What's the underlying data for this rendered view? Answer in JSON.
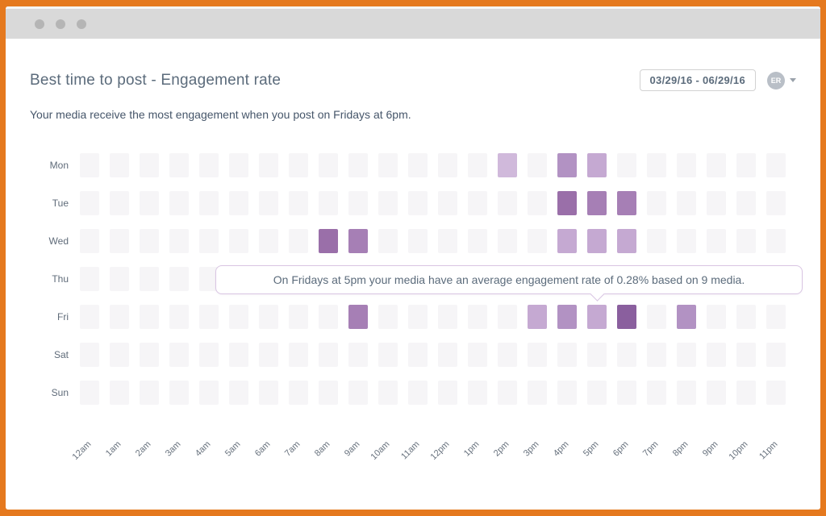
{
  "window": {
    "titlebar_dots": [
      "window-dot-1",
      "window-dot-2",
      "window-dot-3"
    ]
  },
  "header": {
    "title": "Best time to post - Engagement rate",
    "date_range": "03/29/16 - 06/29/16",
    "avatar_initials": "ER"
  },
  "subtitle": "Your media receive the most engagement when you post on Fridays at 6pm.",
  "tooltip": {
    "text": "On Fridays at 5pm your media have an average engagement rate of 0.28% based on 9 media.",
    "day": "Fri",
    "hour": "5pm",
    "engagement_rate": "0.28%",
    "media_count": 9
  },
  "chart_data": {
    "type": "heatmap",
    "title": "Best time to post - Engagement rate",
    "x_categories": [
      "12am",
      "1am",
      "2am",
      "3am",
      "4am",
      "5am",
      "6am",
      "7am",
      "8am",
      "9am",
      "10am",
      "11am",
      "12pm",
      "1pm",
      "2pm",
      "3pm",
      "4pm",
      "5pm",
      "6pm",
      "7pm",
      "8pm",
      "9pm",
      "10pm",
      "11pm"
    ],
    "y_categories": [
      "Mon",
      "Tue",
      "Wed",
      "Thu",
      "Fri",
      "Sat",
      "Sun"
    ],
    "palette": [
      "#f6f5f7",
      "#d0b9db",
      "#c5a9d2",
      "#b292c3",
      "#a67fb5",
      "#9a6fa9",
      "#8a5f9e"
    ],
    "legend": "palette index 0 = no engagement, 6 = highest engagement",
    "series": [
      {
        "name": "Mon",
        "values": [
          0,
          0,
          0,
          0,
          0,
          0,
          0,
          0,
          0,
          0,
          0,
          0,
          0,
          0,
          1,
          0,
          3,
          2,
          0,
          0,
          0,
          0,
          0,
          0
        ]
      },
      {
        "name": "Tue",
        "values": [
          0,
          0,
          0,
          0,
          0,
          0,
          0,
          0,
          0,
          0,
          0,
          0,
          0,
          0,
          0,
          0,
          5,
          4,
          4,
          0,
          0,
          0,
          0,
          0
        ]
      },
      {
        "name": "Wed",
        "values": [
          0,
          0,
          0,
          0,
          0,
          0,
          0,
          0,
          5,
          4,
          0,
          0,
          0,
          0,
          0,
          0,
          2,
          2,
          2,
          0,
          0,
          0,
          0,
          0
        ]
      },
      {
        "name": "Thu",
        "values": [
          0,
          0,
          0,
          0,
          0,
          0,
          0,
          0,
          0,
          0,
          0,
          0,
          0,
          0,
          0,
          0,
          0,
          0,
          0,
          0,
          0,
          0,
          0,
          0
        ]
      },
      {
        "name": "Fri",
        "values": [
          0,
          0,
          0,
          0,
          0,
          0,
          0,
          0,
          0,
          4,
          0,
          0,
          0,
          0,
          0,
          2,
          3,
          2,
          6,
          0,
          3,
          0,
          0,
          0
        ]
      },
      {
        "name": "Sat",
        "values": [
          0,
          0,
          0,
          0,
          0,
          0,
          0,
          0,
          0,
          0,
          0,
          0,
          0,
          0,
          0,
          0,
          0,
          0,
          0,
          0,
          0,
          0,
          0,
          0
        ]
      },
      {
        "name": "Sun",
        "values": [
          0,
          0,
          0,
          0,
          0,
          0,
          0,
          0,
          0,
          0,
          0,
          0,
          0,
          0,
          0,
          0,
          0,
          0,
          0,
          0,
          0,
          0,
          0,
          0
        ]
      }
    ],
    "best": {
      "day": "Fri",
      "hour": "6pm"
    },
    "grid": "off",
    "legend_position": "none"
  },
  "colors": {
    "frame_orange": "#e5791e",
    "titlebar_gray": "#d9d9d9",
    "dot_gray": "#b5b5b5",
    "title_text": "#5b6b7b",
    "subtitle_text": "#46566a",
    "axis_text": "#68727e",
    "tooltip_border": "#d9c5e3",
    "cell_empty": "#f6f5f7",
    "cell_darkest": "#8a5f9e"
  }
}
